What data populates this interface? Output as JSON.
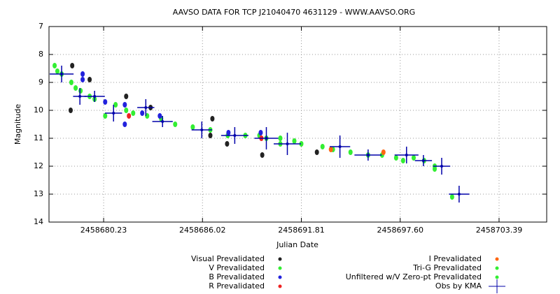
{
  "chart_data": {
    "type": "scatter",
    "title": "AAVSO DATA FOR TCP J21040470 4631129 - WWW.AAVSO.ORG",
    "x_label": "Julian Date",
    "y_label": "Magnitude",
    "xlim": [
      2458677.03,
      2458706.18
    ],
    "ylim": [
      7,
      14
    ],
    "y_inverted": true,
    "grid": true,
    "xticks": [
      2458680.23,
      2458686.02,
      2458691.81,
      {
        "value": 2458697.6,
        "label": "2458697.60"
      },
      2458703.39
    ],
    "yticks": [
      7,
      8,
      9,
      10,
      11,
      12,
      13,
      14
    ],
    "series": [
      {
        "name": "Visual Prevalidated",
        "color": "#222222",
        "x": [
          2458678.39,
          2458678.3,
          2458679.41,
          2458681.55,
          2458682.98,
          2458686.48,
          2458686.6,
          2458687.46,
          2458689.52,
          2458692.72
        ],
        "y": [
          8.4,
          10.0,
          8.9,
          9.5,
          9.9,
          10.9,
          10.3,
          11.2,
          11.6,
          11.5
        ]
      },
      {
        "name": "V Prevalidated",
        "color": "#33ee33",
        "x": [
          2458677.36,
          2458677.52,
          2458677.77,
          2458678.34,
          2458678.59,
          2458678.88,
          2458679.41,
          2458679.7,
          2458680.32,
          2458680.93,
          2458681.55,
          2458681.96,
          2458682.78,
          2458683.6,
          2458684.42,
          2458685.45,
          2458686.48,
          2458687.5,
          2458688.53,
          2458689.35,
          2458689.76,
          2458690.58,
          2458691.4,
          2458691.81,
          2458693.05,
          2458693.66,
          2458694.69,
          2458695.72,
          2458696.54,
          2458697.36,
          2458697.77,
          2458698.39,
          2458699.0,
          2458699.62,
          2458700.64
        ],
        "y": [
          8.4,
          8.6,
          8.7,
          9.0,
          9.2,
          9.3,
          9.5,
          9.6,
          10.2,
          9.8,
          10.0,
          10.1,
          10.2,
          10.3,
          10.5,
          10.6,
          10.7,
          10.9,
          10.9,
          10.9,
          11.0,
          11.0,
          11.1,
          11.2,
          11.3,
          11.4,
          11.5,
          11.6,
          11.6,
          11.7,
          11.8,
          11.7,
          11.8,
          12.0,
          13.1
        ]
      },
      {
        "name": "B Prevalidated",
        "color": "#2222dd",
        "x": [
          2458679.0,
          2458679.0,
          2458680.32,
          2458681.47,
          2458681.47,
          2458682.49,
          2458683.52,
          2458687.54,
          2458689.43
        ],
        "y": [
          8.7,
          8.9,
          9.7,
          9.8,
          10.5,
          10.1,
          10.2,
          10.8,
          10.8
        ]
      },
      {
        "name": "R Prevalidated",
        "color": "#ee2222",
        "x": [
          2458681.71,
          2458689.47
        ],
        "y": [
          10.2,
          11.0
        ]
      },
      {
        "name": "I Prevalidated",
        "color": "#ff6611",
        "x": [
          2458693.54,
          2458696.62
        ],
        "y": [
          11.4,
          11.5
        ]
      },
      {
        "name": "Tri-G Prevalidated",
        "color": "#33ee33",
        "x": [
          2458690.58
        ],
        "y": [
          11.2
        ]
      },
      {
        "name": "Unfiltered w/V Zero-pt Prevalidated",
        "color": "#33ee33",
        "x": [
          2458699.62
        ],
        "y": [
          12.1
        ]
      },
      {
        "name": "Obs by KMA",
        "color": "#0000aa",
        "marker": "cross",
        "x": [
          2458677.77,
          2458678.84,
          2458679.7,
          2458680.81,
          2458682.7,
          2458683.68,
          2458685.98,
          2458687.91,
          2458689.76,
          2458690.99,
          2458694.07,
          2458695.72,
          2458697.97,
          2458698.96,
          2458700.03,
          2458701.05
        ],
        "y": [
          8.7,
          9.5,
          9.5,
          10.1,
          9.9,
          10.4,
          10.7,
          10.9,
          11.0,
          11.2,
          11.3,
          11.6,
          11.6,
          11.8,
          12.0,
          13.0
        ],
        "xerr": [
          0.7,
          0.4,
          0.6,
          0.5,
          0.5,
          0.6,
          0.6,
          0.8,
          0.7,
          0.8,
          0.6,
          0.8,
          0.7,
          0.5,
          0.5,
          0.6
        ],
        "yerr": [
          0.3,
          0.3,
          0.2,
          0.3,
          0.3,
          0.2,
          0.3,
          0.3,
          0.4,
          0.4,
          0.4,
          0.2,
          0.3,
          0.2,
          0.3,
          0.3
        ]
      }
    ]
  }
}
